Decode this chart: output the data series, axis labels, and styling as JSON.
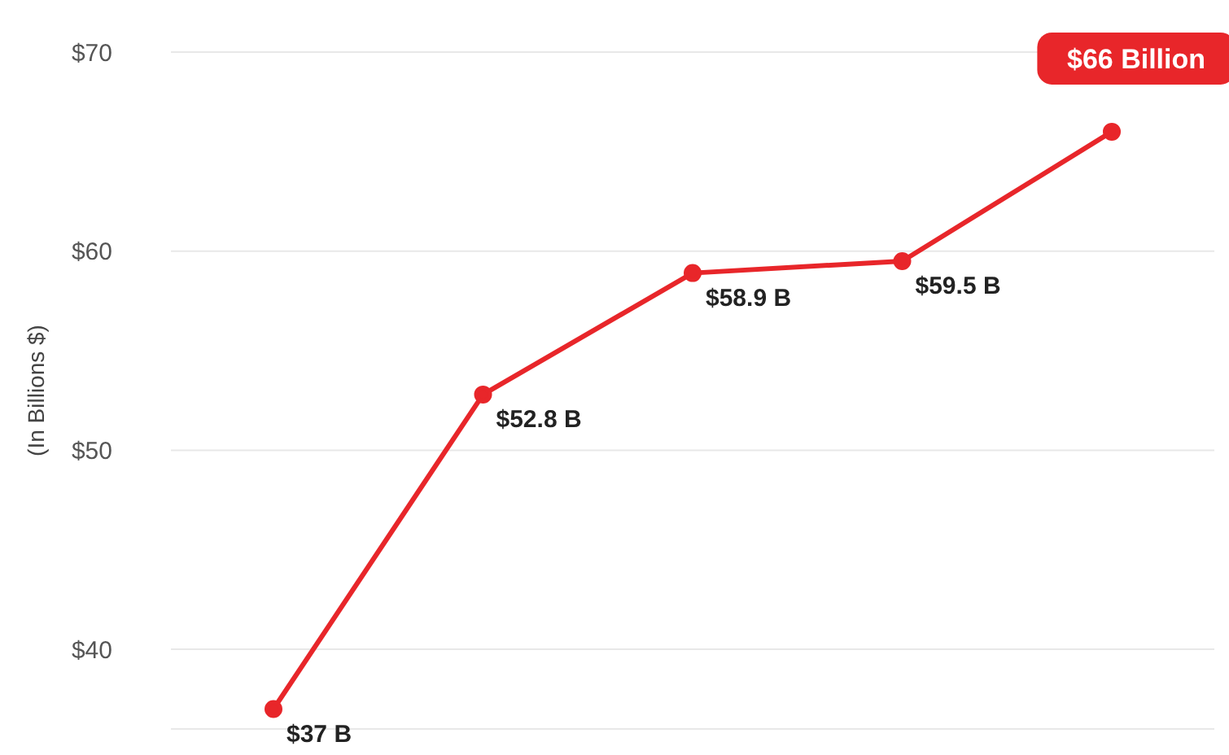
{
  "chart_data": {
    "type": "line",
    "ylabel": "(In Billions $)",
    "categories": [
      null,
      null,
      null,
      null,
      null
    ],
    "series": [
      {
        "color": "#e8262a",
        "values": [
          37,
          52.8,
          58.9,
          59.5,
          66
        ],
        "value_labels": [
          "$37 B",
          "$52.8 B",
          "$58.9 B",
          "$59.5 B",
          "$66 Billion"
        ]
      }
    ],
    "ylim": [
      36,
      70
    ],
    "yticks": [
      {
        "value": 40,
        "label": "$40"
      },
      {
        "value": 50,
        "label": "$50"
      },
      {
        "value": 60,
        "label": "$60"
      },
      {
        "value": 70,
        "label": "$70"
      }
    ],
    "grid": "y",
    "marker": "circle",
    "line_style": "solid",
    "legend": false
  }
}
